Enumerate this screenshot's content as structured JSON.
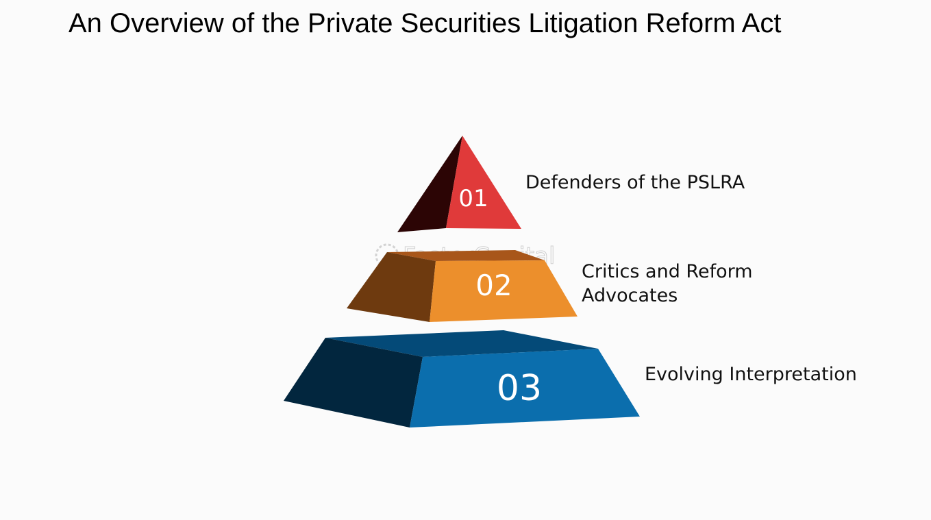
{
  "title": "An Overview of the Private Securities Litigation Reform Act",
  "watermark": "FasterCapital",
  "levels": [
    {
      "number": "01",
      "label": "Defenders of the PSLRA",
      "front_color": "#e03a3a",
      "side_color": "#2c0505"
    },
    {
      "number": "02",
      "label_lines": [
        "Critics and Reform",
        "Advocates"
      ],
      "front_color": "#ec8f2c",
      "side_color": "#6e3a0f",
      "top_color": "#a8561a"
    },
    {
      "number": "03",
      "label": "Evolving Interpretation",
      "front_color": "#0b6ead",
      "side_color": "#02263e",
      "top_color": "#044a78"
    }
  ]
}
